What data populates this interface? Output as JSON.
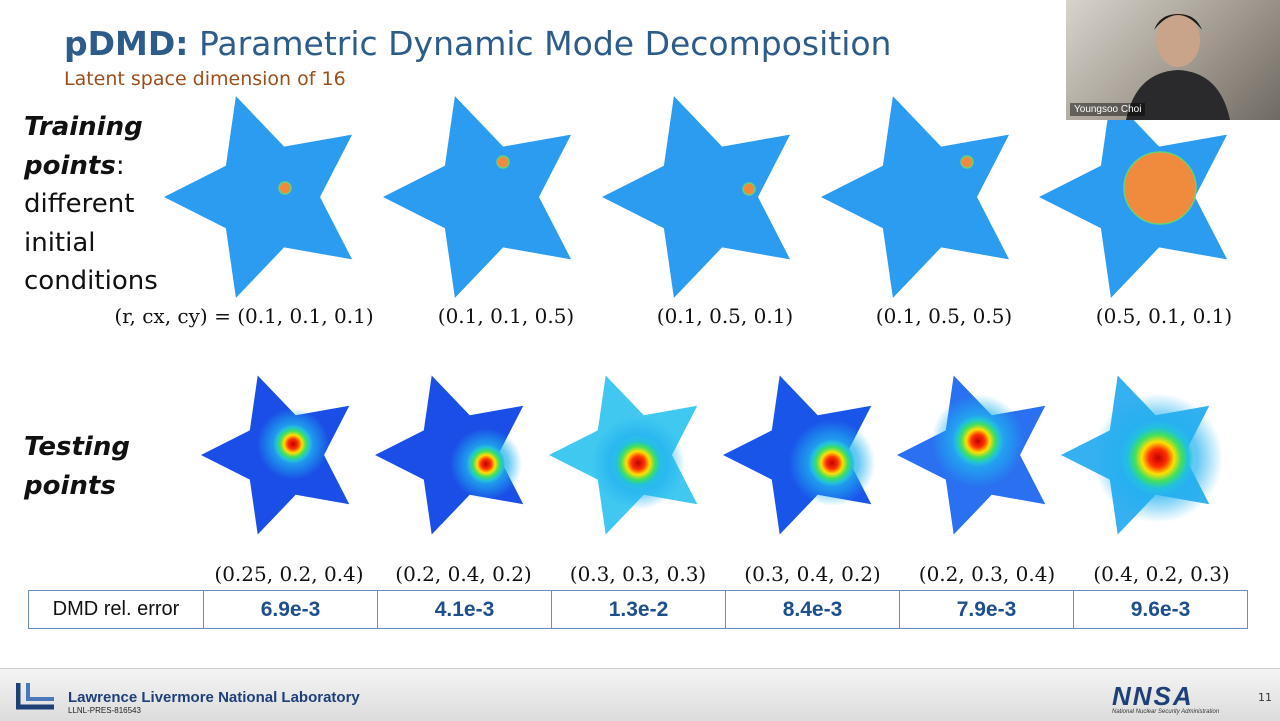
{
  "title": {
    "bold": "pDMD:",
    "text": "Parametric Dynamic Mode Decomposition"
  },
  "subtitle": "Latent space dimension of 16",
  "training": {
    "heading": "Training points",
    "description": ": different initial conditions",
    "params": [
      "(r, cx, cy) = (0.1, 0.1, 0.1)",
      "(0.1, 0.1, 0.5)",
      "(0.1, 0.5, 0.1)",
      "(0.1, 0.5, 0.5)",
      "(0.5, 0.1, 0.1)"
    ]
  },
  "testing": {
    "heading": "Testing points",
    "params": [
      "(0.25, 0.2, 0.4)",
      "(0.2, 0.4, 0.2)",
      "(0.3, 0.3, 0.3)",
      "(0.3, 0.4, 0.2)",
      "(0.2, 0.3, 0.4)",
      "(0.4, 0.2, 0.3)"
    ]
  },
  "table": {
    "header": "DMD rel. error",
    "values": [
      "6.9e-3",
      "4.1e-3",
      "1.3e-2",
      "8.4e-3",
      "7.9e-3",
      "9.6e-3"
    ]
  },
  "footer": {
    "lab": "Lawrence Livermore National Laboratory",
    "document_id": "LLNL-PRES-816543",
    "logo": "NNSA",
    "logo_subtitle": "National Nuclear Security Administration",
    "page": "11"
  },
  "webcam": {
    "name": "Youngsoo Choi"
  }
}
